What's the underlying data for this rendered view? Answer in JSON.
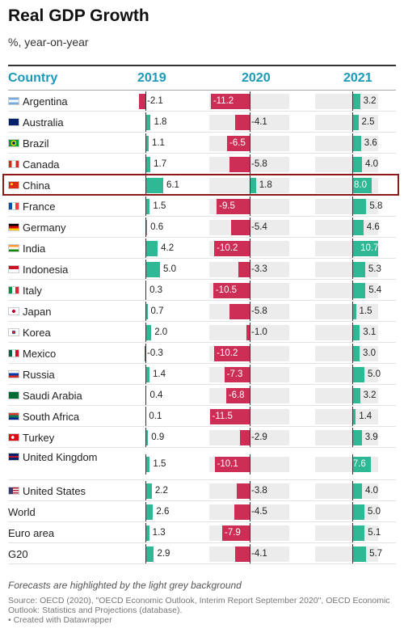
{
  "header": {
    "title": "Real GDP Growth",
    "subtitle": "%, year-on-year",
    "col_country": "Country",
    "col_2019": "2019",
    "col_2020": "2020",
    "col_2021": "2021"
  },
  "footer": {
    "note": "Forecasts are highlighted by the light grey background",
    "source": "Source: OECD (2020), \"OECD Economic Outlook, Interim Report September 2020\", OECD Economic Outlook: Statistics and Projections (database).",
    "credit": "• Created with Datawrapper"
  },
  "colors": {
    "positive": "#2eb894",
    "negative": "#cc2e55",
    "forecast_bg": "#ececec",
    "header": "#1a99b8",
    "highlight": "#8b1a1a"
  },
  "highlighted_country": "China",
  "chart_data": {
    "type": "bar",
    "title": "Real GDP Growth",
    "subtitle": "%, year-on-year",
    "categories": [
      "Argentina",
      "Australia",
      "Brazil",
      "Canada",
      "China",
      "France",
      "Germany",
      "India",
      "Indonesia",
      "Italy",
      "Japan",
      "Korea",
      "Mexico",
      "Russia",
      "Saudi Arabia",
      "South Africa",
      "Turkey",
      "United Kingdom",
      "United States",
      "World",
      "Euro area",
      "G20"
    ],
    "series": [
      {
        "name": "2019",
        "forecast": false,
        "values": [
          -2.1,
          1.8,
          1.1,
          1.7,
          6.1,
          1.5,
          0.6,
          4.2,
          5.0,
          0.3,
          0.7,
          2.0,
          -0.3,
          1.4,
          0.4,
          0.1,
          0.9,
          1.5,
          2.2,
          2.6,
          1.3,
          2.9
        ]
      },
      {
        "name": "2020",
        "forecast": true,
        "values": [
          -11.2,
          -4.1,
          -6.5,
          -5.8,
          1.8,
          -9.5,
          -5.4,
          -10.2,
          -3.3,
          -10.5,
          -5.8,
          -1.0,
          -10.2,
          -7.3,
          -6.8,
          -11.5,
          -2.9,
          -10.1,
          -3.8,
          -4.5,
          -7.9,
          -4.1
        ]
      },
      {
        "name": "2021",
        "forecast": true,
        "values": [
          3.2,
          2.5,
          3.6,
          4.0,
          8.0,
          5.8,
          4.6,
          10.7,
          5.3,
          5.4,
          1.5,
          3.1,
          3.0,
          5.0,
          3.2,
          1.4,
          3.9,
          7.6,
          4.0,
          5.0,
          5.1,
          5.7
        ]
      }
    ],
    "value_labels": [
      [
        "-2.1",
        "1.8",
        "1.1",
        "1.7",
        "6.1",
        "1.5",
        "0.6",
        "4.2",
        "5.0",
        "0.3",
        "0.7",
        "2.0",
        "-0.3",
        "1.4",
        "0.4",
        "0.1",
        "0.9",
        "1.5",
        "2.2",
        "2.6",
        "1.3",
        "2.9"
      ],
      [
        "-11.2",
        "-4.1",
        "-6.5",
        "-5.8",
        "1.8",
        "-9.5",
        "-5.4",
        "-10.2",
        "-3.3",
        "-10.5",
        "-5.8",
        "-1.0",
        "-10.2",
        "-7.3",
        "-6.8",
        "-11.5",
        "-2.9",
        "-10.1",
        "-3.8",
        "-4.5",
        "-7.9",
        "-4.1"
      ],
      [
        "3.2",
        "2.5",
        "3.6",
        "4.0",
        "8.0",
        "5.8",
        "4.6",
        "10.7",
        "5.3",
        "5.4",
        "1.5",
        "3.1",
        "3.0",
        "5.0",
        "3.2",
        "1.4",
        "3.9",
        "7.6",
        "4.0",
        "5.0",
        "5.1",
        "5.7"
      ]
    ],
    "flags": [
      "argentina-flag-icon",
      "australia-flag-icon",
      "brazil-flag-icon",
      "canada-flag-icon",
      "china-flag-icon",
      "france-flag-icon",
      "germany-flag-icon",
      "india-flag-icon",
      "indonesia-flag-icon",
      "italy-flag-icon",
      "japan-flag-icon",
      "korea-flag-icon",
      "mexico-flag-icon",
      "russia-flag-icon",
      "saudi-arabia-flag-icon",
      "south-africa-flag-icon",
      "turkey-flag-icon",
      "united-kingdom-flag-icon",
      "united-states-flag-icon",
      "",
      "",
      ""
    ]
  }
}
